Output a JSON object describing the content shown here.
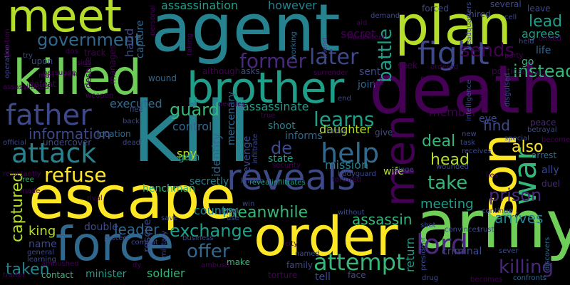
{
  "colors": {
    "background": "#000000",
    "palette": [
      "#fde725",
      "#b5de2b",
      "#6ece58",
      "#35b779",
      "#1f9e89",
      "#26828e",
      "#31688e",
      "#3e4989",
      "#482878",
      "#440154"
    ]
  },
  "words": [
    "kill",
    "death",
    "agent",
    "army",
    "order",
    "escape",
    "plan",
    "killed",
    "son",
    "brother",
    "meet",
    "force",
    "men",
    "reveals",
    "attack",
    "father",
    "war",
    "fight",
    "lord",
    "help",
    "attempt",
    "refuse",
    "later",
    "former",
    "information",
    "government",
    "guard",
    "sends",
    "instead",
    "captured",
    "exchange",
    "learns",
    "take",
    "battle",
    "killing",
    "prison",
    "meanwhile",
    "head",
    "leader",
    "offer",
    "assassin",
    "assassinate",
    "meeting",
    "de",
    "also",
    "lead",
    "agrees",
    "however",
    "assassination",
    "find",
    "deal",
    "taken",
    "king",
    "daughter",
    "spy",
    "identity",
    "mission",
    "executed",
    "arrives",
    "country",
    "control",
    "henchman",
    "revenge",
    "double",
    "hand",
    "minister",
    "soldier",
    "contact",
    "member",
    "criminal",
    "tell",
    "return",
    "secret",
    "sent",
    "join",
    "mercenary",
    "shoot",
    "informs",
    "eye",
    "ally",
    "peace",
    "wife",
    "state",
    "secretly",
    "gain",
    "life",
    "go",
    "capture",
    "rescue",
    "name",
    "general",
    "location",
    "upon",
    "persuade",
    "leave",
    "manages",
    "wound",
    "betrayal",
    "arrest",
    "face",
    "political",
    "siege",
    "undercover",
    "torture",
    "family",
    "make",
    "use",
    "ambush",
    "demand",
    "forced",
    "hired",
    "several",
    "cell",
    "united",
    "aid",
    "musketeer",
    "working",
    "headquarters",
    "personal",
    "track",
    "operation",
    "try",
    "dos",
    "defeat",
    "weapon",
    "traitor",
    "free",
    "official",
    "dead",
    "flee",
    "back",
    "assassinated",
    "taking",
    "side",
    "despite",
    "year",
    "man",
    "although",
    "asks",
    "friend",
    "surrender",
    "seek",
    "ordered",
    "prime",
    "intelligence",
    "charge",
    "disguised",
    "raid",
    "party",
    "held",
    "learning",
    "reluctantly",
    "rival",
    "combat",
    "military",
    "travel",
    "win",
    "known",
    "revealinfiltrates",
    "bodyguard",
    "tortured",
    "without",
    "decides",
    "true",
    "infiltrate",
    "end",
    "know",
    "give",
    "new",
    "special",
    "task",
    "receives",
    "become",
    "duel",
    "lies",
    "continue",
    "trust",
    "shot",
    "convinces",
    "discovers",
    "confronts",
    "becomes",
    "drug",
    "president",
    "named",
    "city",
    "sever",
    "protect",
    "business",
    "save",
    "wounded",
    "set",
    "security",
    "dy",
    "position",
    "ambushed",
    "made"
  ]
}
